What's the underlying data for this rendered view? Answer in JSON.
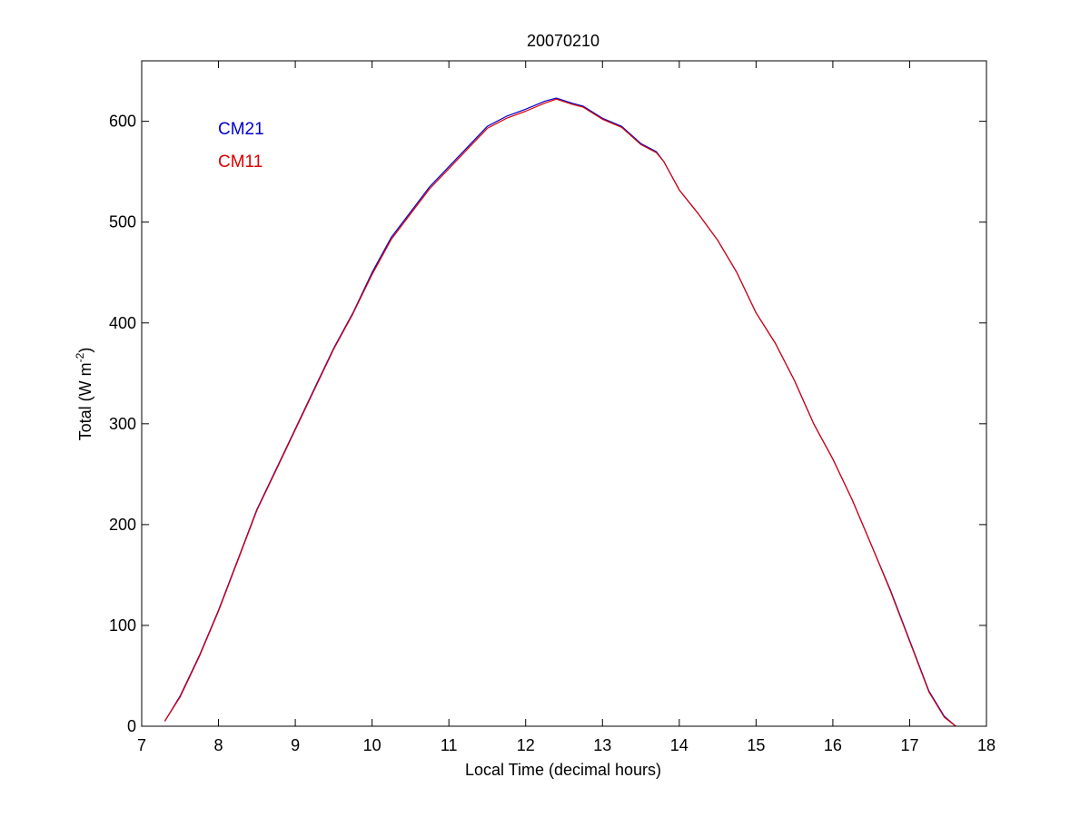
{
  "chart_data": {
    "type": "line",
    "title": "20070210",
    "xlabel": "Local Time (decimal hours)",
    "ylabel_base": "Total (W m",
    "ylabel_sup": "-2",
    "ylabel_close": ")",
    "xlim": [
      7,
      18
    ],
    "ylim": [
      0,
      660
    ],
    "xticks": [
      7,
      8,
      9,
      10,
      11,
      12,
      13,
      14,
      15,
      16,
      17,
      18
    ],
    "yticks": [
      0,
      100,
      200,
      300,
      400,
      500,
      600
    ],
    "grid": false,
    "legend_position": "top-left",
    "series": [
      {
        "name": "CM21",
        "color": "#0000cc",
        "x": [
          7.3,
          7.5,
          7.75,
          8.0,
          8.25,
          8.5,
          8.75,
          9.0,
          9.25,
          9.5,
          9.75,
          10.0,
          10.25,
          10.5,
          10.75,
          11.0,
          11.25,
          11.5,
          11.75,
          12.0,
          12.25,
          12.4,
          12.6,
          12.75,
          13.0,
          13.25,
          13.5,
          13.7,
          13.8,
          14.0,
          14.25,
          14.5,
          14.75,
          15.0,
          15.25,
          15.5,
          15.75,
          16.0,
          16.25,
          16.5,
          16.75,
          17.0,
          17.25,
          17.45,
          17.6
        ],
        "values": [
          5,
          30,
          70,
          115,
          165,
          215,
          255,
          295,
          335,
          375,
          410,
          450,
          485,
          510,
          535,
          555,
          575,
          595,
          605,
          612,
          620,
          623,
          618,
          615,
          603,
          595,
          578,
          570,
          560,
          532,
          508,
          482,
          450,
          410,
          380,
          343,
          300,
          265,
          225,
          180,
          135,
          85,
          35,
          10,
          0
        ]
      },
      {
        "name": "CM11",
        "color": "#dd0000",
        "x": [
          7.3,
          7.5,
          7.75,
          8.0,
          8.25,
          8.5,
          8.75,
          9.0,
          9.25,
          9.5,
          9.75,
          10.0,
          10.25,
          10.5,
          10.75,
          11.0,
          11.25,
          11.5,
          11.75,
          12.0,
          12.25,
          12.4,
          12.6,
          12.75,
          13.0,
          13.25,
          13.5,
          13.7,
          13.8,
          14.0,
          14.25,
          14.5,
          14.75,
          15.0,
          15.25,
          15.5,
          15.75,
          16.0,
          16.25,
          16.5,
          16.75,
          17.0,
          17.25,
          17.45,
          17.6
        ],
        "values": [
          5,
          29,
          69,
          114,
          164,
          214,
          254,
          294,
          334,
          374,
          409,
          448,
          483,
          508,
          533,
          553,
          573,
          593,
          603,
          610,
          618,
          622,
          617,
          614,
          602,
          594,
          577,
          569,
          560,
          532,
          508,
          482,
          450,
          410,
          380,
          343,
          300,
          265,
          225,
          180,
          134,
          84,
          34,
          9,
          0
        ]
      }
    ]
  }
}
